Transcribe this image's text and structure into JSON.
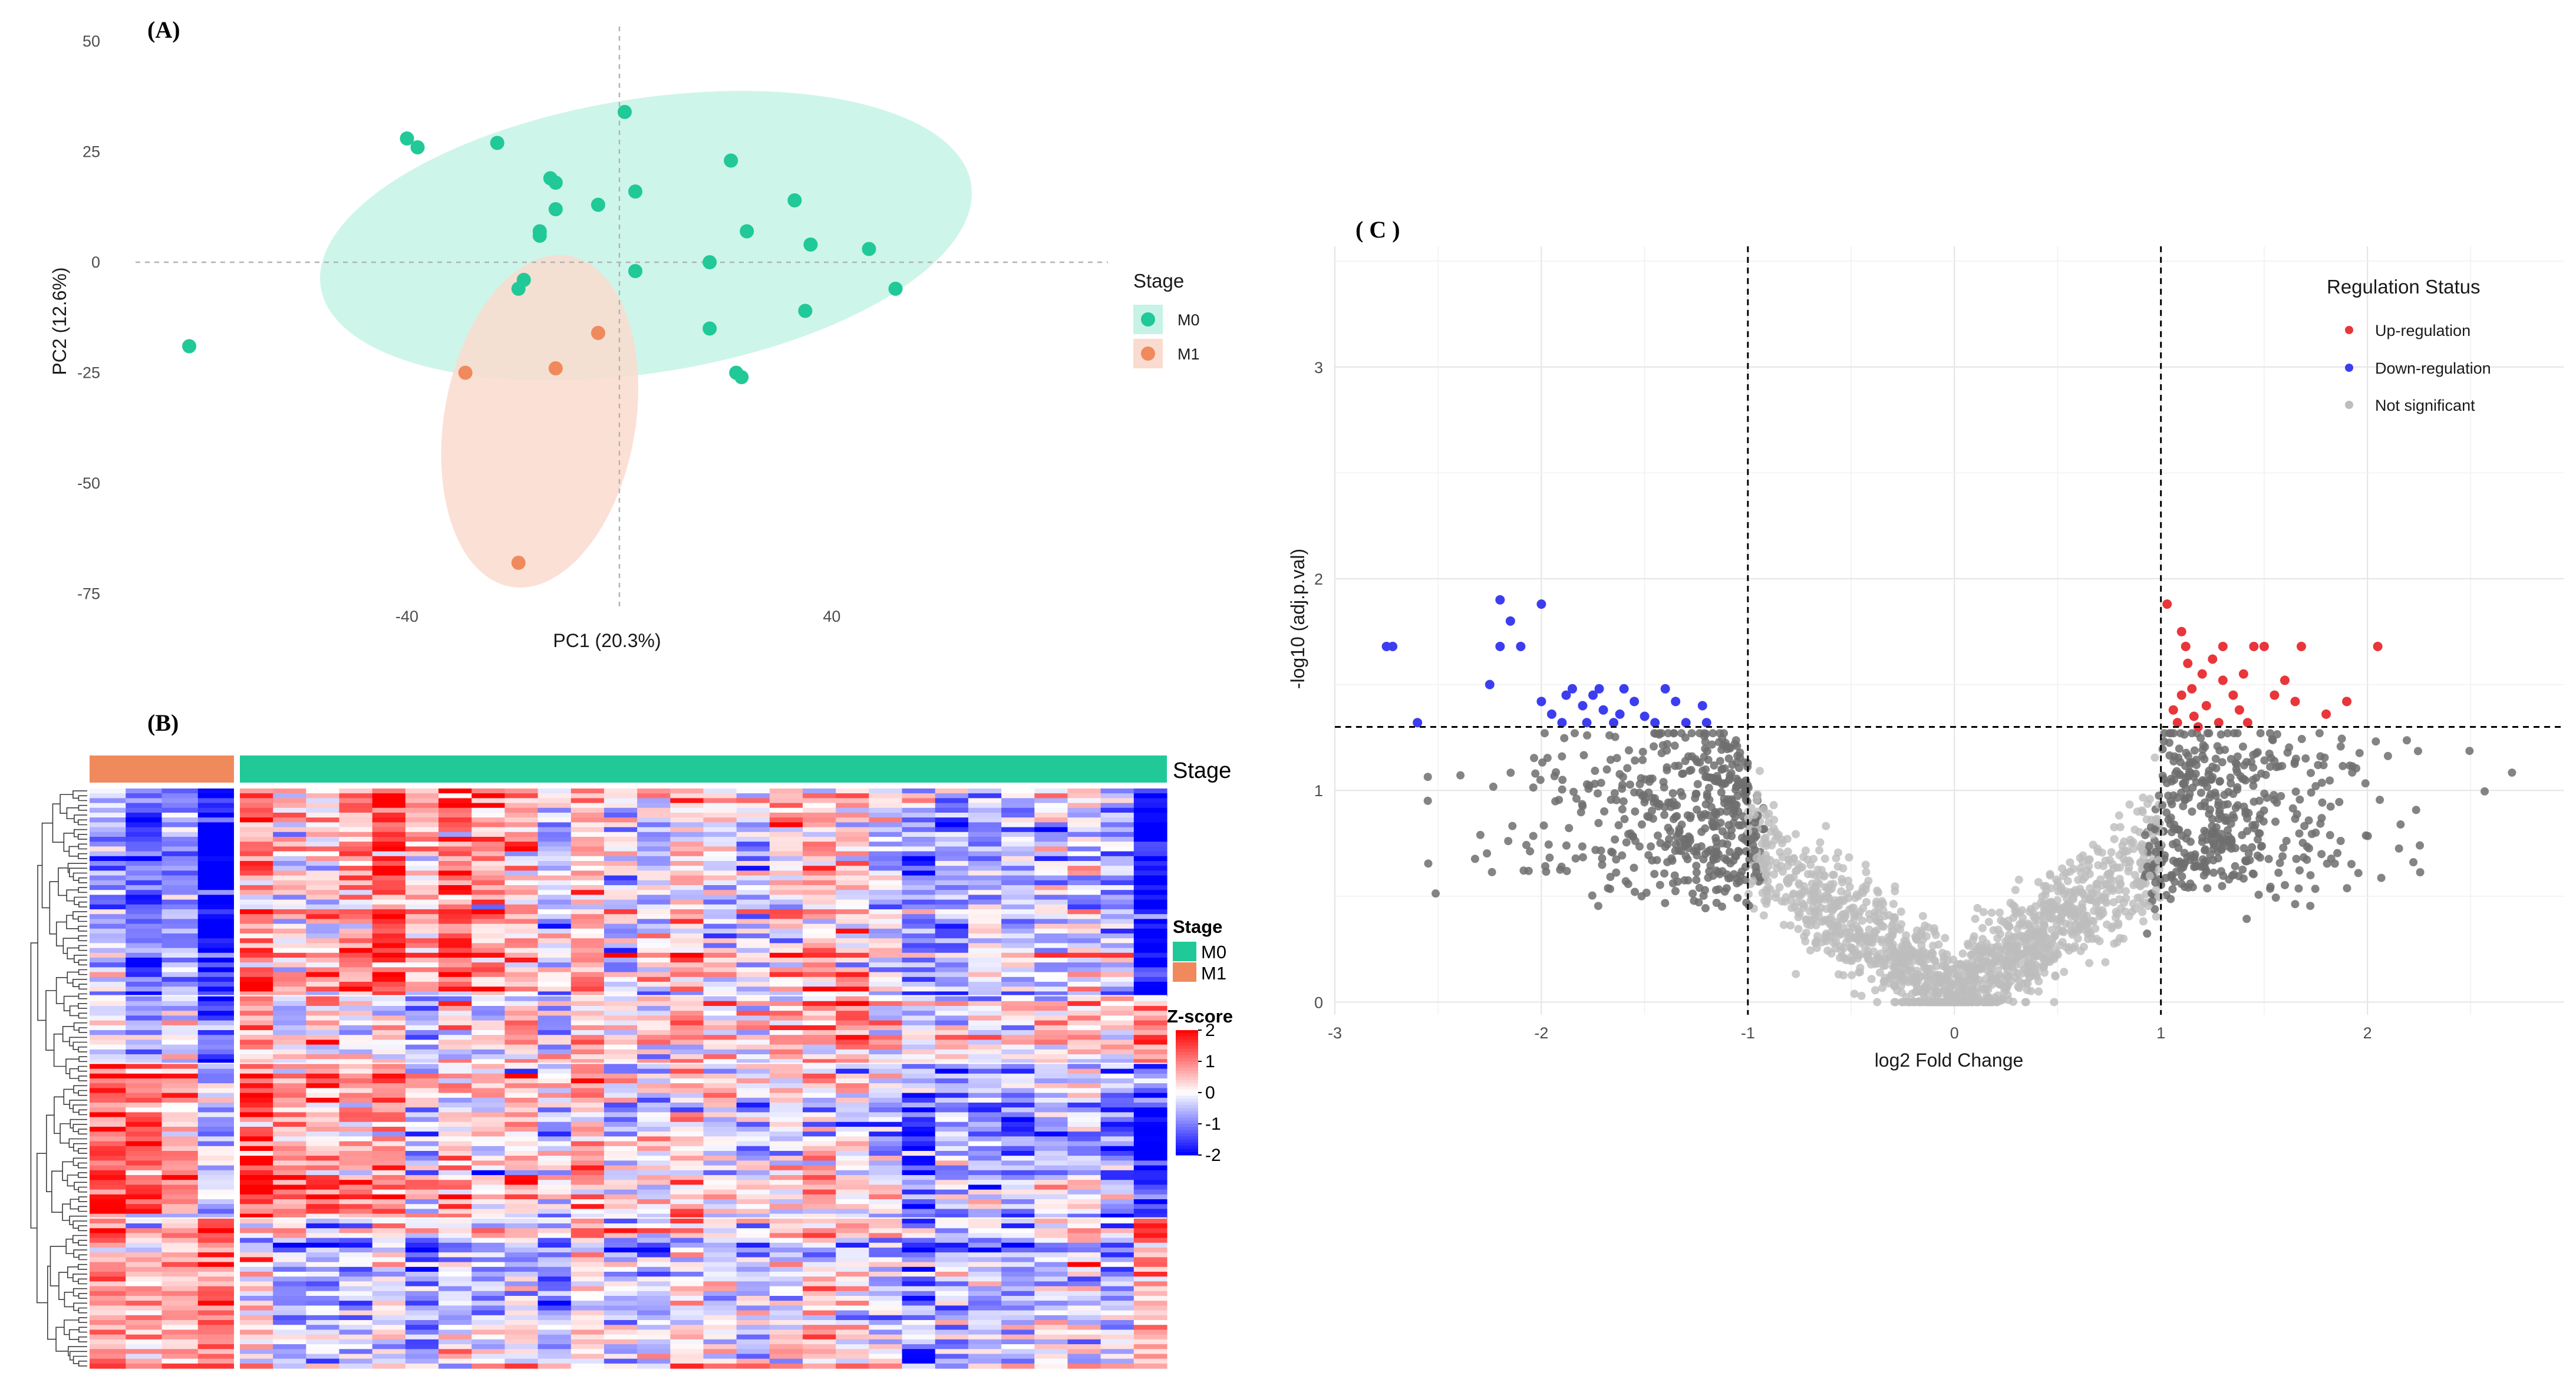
{
  "colors": {
    "m0": "#20c997",
    "m1": "#f08a5d",
    "m0_ellipse": "#c6f3e5",
    "m1_ellipse": "#fadbcf",
    "up": "#e8363b",
    "down": "#3d3df0",
    "ns_light": "#bdbdbd",
    "ns_dark": "#6e6e6e",
    "heat_high": "#ff0000",
    "heat_mid": "#ffffff",
    "heat_low": "#0000ff"
  },
  "panel_labels": {
    "a": "(A)",
    "b": "(B)",
    "c": "( C )"
  },
  "chart_data": [
    {
      "id": "A",
      "type": "scatter",
      "title": "(A)",
      "xlabel": "PC1 (20.3%)",
      "ylabel": "PC2 (12.6%)",
      "xlim": [
        -90,
        92
      ],
      "ylim": [
        -78,
        52
      ],
      "x_ticks": [
        -40,
        0,
        40
      ],
      "x_tick_labels": [
        "-40",
        "",
        "40"
      ],
      "y_ticks": [
        50,
        25,
        0,
        -25,
        -50,
        -75
      ],
      "y_tick_labels": [
        "50",
        "25",
        "0",
        "-25",
        "-50",
        "-75"
      ],
      "reference_lines": {
        "x": 0,
        "y": 0
      },
      "legend": {
        "title": "Stage",
        "entries": [
          "M0",
          "M1"
        ]
      },
      "ellipses": [
        {
          "group": "M0",
          "cx": 5,
          "cy": 6,
          "rx": 62,
          "ry": 31,
          "angle_deg": -9
        },
        {
          "group": "M1",
          "cx": -15,
          "cy": -36,
          "rx": 18,
          "ry": 38,
          "angle_deg": 10
        }
      ],
      "series": [
        {
          "name": "M0",
          "points": [
            [
              -81,
              -19
            ],
            [
              -40,
              28
            ],
            [
              -38,
              26
            ],
            [
              -23,
              27
            ],
            [
              -18,
              -4
            ],
            [
              -19,
              -6
            ],
            [
              -15,
              6
            ],
            [
              -15,
              7
            ],
            [
              -13,
              19
            ],
            [
              -12,
              18
            ],
            [
              -12,
              12
            ],
            [
              -4,
              13
            ],
            [
              1,
              34
            ],
            [
              3,
              -2
            ],
            [
              3,
              16
            ],
            [
              17,
              0
            ],
            [
              17,
              -15
            ],
            [
              21,
              23
            ],
            [
              22,
              -25
            ],
            [
              23,
              -26
            ],
            [
              24,
              7
            ],
            [
              33,
              14
            ],
            [
              35,
              -11
            ],
            [
              36,
              4
            ],
            [
              47,
              3
            ],
            [
              52,
              -6
            ]
          ]
        },
        {
          "name": "M1",
          "points": [
            [
              -29,
              -25
            ],
            [
              -19,
              -68
            ],
            [
              -12,
              -24
            ],
            [
              -4,
              -16
            ]
          ]
        }
      ]
    },
    {
      "id": "B",
      "type": "heatmap",
      "title": "( B )",
      "annotation_label": "Stage",
      "columns": {
        "M1": 4,
        "M0": 28
      },
      "rows": 120,
      "row_blocks": [
        {
          "rows": 43,
          "m1": [
            -0.6,
            -1.2,
            -0.8,
            -2.0
          ],
          "m0_start": 0.6,
          "m0_end": -0.4,
          "m0_last": -2.0
        },
        {
          "rows": 14,
          "m1": [
            -0.2,
            -0.6,
            -0.3,
            -1.5
          ],
          "m0_start": 0.1,
          "m0_end": 0.3,
          "m0_last": 0.5
        },
        {
          "rows": 32,
          "m1": [
            1.4,
            1.2,
            0.7,
            -0.4
          ],
          "m0_start": 0.8,
          "m0_end": -0.7,
          "m0_last": -1.5
        },
        {
          "rows": 31,
          "m1": [
            1.0,
            0.4,
            0.6,
            1.2
          ],
          "m0_start": -0.2,
          "m0_end": -0.4,
          "m0_last": 0.8
        }
      ],
      "legend_stage": {
        "title": "Stage",
        "entries": [
          "M0",
          "M1"
        ]
      },
      "legend_zscore": {
        "title": "Z-score",
        "ticks": [
          2,
          1,
          0,
          -1,
          -2
        ],
        "tick_labels": [
          "2",
          "1",
          "0",
          "-1",
          "-2"
        ]
      }
    },
    {
      "id": "C",
      "type": "scatter",
      "title": "( C )",
      "xlabel": "log2 Fold Change",
      "ylabel": "-log10 (adj.p.val)",
      "xlim": [
        -3.0,
        2.95
      ],
      "ylim": [
        -0.06,
        3.57
      ],
      "x_ticks": [
        -3,
        -2,
        -1,
        0,
        1,
        2
      ],
      "x_tick_labels": [
        "-3",
        "-2",
        "-1",
        "0",
        "1",
        "2"
      ],
      "y_ticks": [
        0,
        1,
        2,
        3
      ],
      "y_tick_labels": [
        "0",
        "1",
        "2",
        "3"
      ],
      "thresholds": {
        "log2fc": [
          -1,
          1
        ],
        "neg_log10_p": 1.3
      },
      "legend": {
        "title": "Regulation Status",
        "entries": [
          "Up-regulation",
          "Down-regulation",
          "Not significant"
        ]
      },
      "series": [
        {
          "name": "Up-regulation",
          "points": [
            [
              1.03,
              1.88
            ],
            [
              1.1,
              1.75
            ],
            [
              1.12,
              1.68
            ],
            [
              1.2,
              1.55
            ],
            [
              1.15,
              1.48
            ],
            [
              1.1,
              1.45
            ],
            [
              1.06,
              1.38
            ],
            [
              1.08,
              1.32
            ],
            [
              1.16,
              1.35
            ],
            [
              1.22,
              1.4
            ],
            [
              1.25,
              1.62
            ],
            [
              1.3,
              1.52
            ],
            [
              1.35,
              1.45
            ],
            [
              1.4,
              1.55
            ],
            [
              1.45,
              1.68
            ],
            [
              1.5,
              1.68
            ],
            [
              1.55,
              1.45
            ],
            [
              1.6,
              1.52
            ],
            [
              1.65,
              1.42
            ],
            [
              1.3,
              1.68
            ],
            [
              1.38,
              1.38
            ],
            [
              1.42,
              1.32
            ],
            [
              1.68,
              1.68
            ],
            [
              1.8,
              1.36
            ],
            [
              1.9,
              1.42
            ],
            [
              2.05,
              1.68
            ],
            [
              1.18,
              1.3
            ],
            [
              1.28,
              1.32
            ],
            [
              1.13,
              1.6
            ]
          ]
        },
        {
          "name": "Down-regulation",
          "points": [
            [
              -2.75,
              1.68
            ],
            [
              -2.72,
              1.68
            ],
            [
              -2.6,
              1.32
            ],
            [
              -2.2,
              1.9
            ],
            [
              -2.0,
              1.88
            ],
            [
              -2.15,
              1.8
            ],
            [
              -2.1,
              1.68
            ],
            [
              -2.2,
              1.68
            ],
            [
              -2.25,
              1.5
            ],
            [
              -2.0,
              1.42
            ],
            [
              -1.95,
              1.36
            ],
            [
              -1.9,
              1.32
            ],
            [
              -1.85,
              1.48
            ],
            [
              -1.8,
              1.4
            ],
            [
              -1.75,
              1.45
            ],
            [
              -1.7,
              1.38
            ],
            [
              -1.65,
              1.32
            ],
            [
              -1.6,
              1.48
            ],
            [
              -1.55,
              1.42
            ],
            [
              -1.5,
              1.35
            ],
            [
              -1.45,
              1.32
            ],
            [
              -1.4,
              1.48
            ],
            [
              -1.35,
              1.42
            ],
            [
              -1.3,
              1.32
            ],
            [
              -1.22,
              1.4
            ],
            [
              -1.2,
              1.32
            ],
            [
              -1.88,
              1.45
            ],
            [
              -1.78,
              1.32
            ],
            [
              -1.62,
              1.36
            ],
            [
              -1.72,
              1.48
            ]
          ]
        },
        {
          "name": "Not significant",
          "generated": true,
          "count": 2400
        }
      ]
    }
  ]
}
